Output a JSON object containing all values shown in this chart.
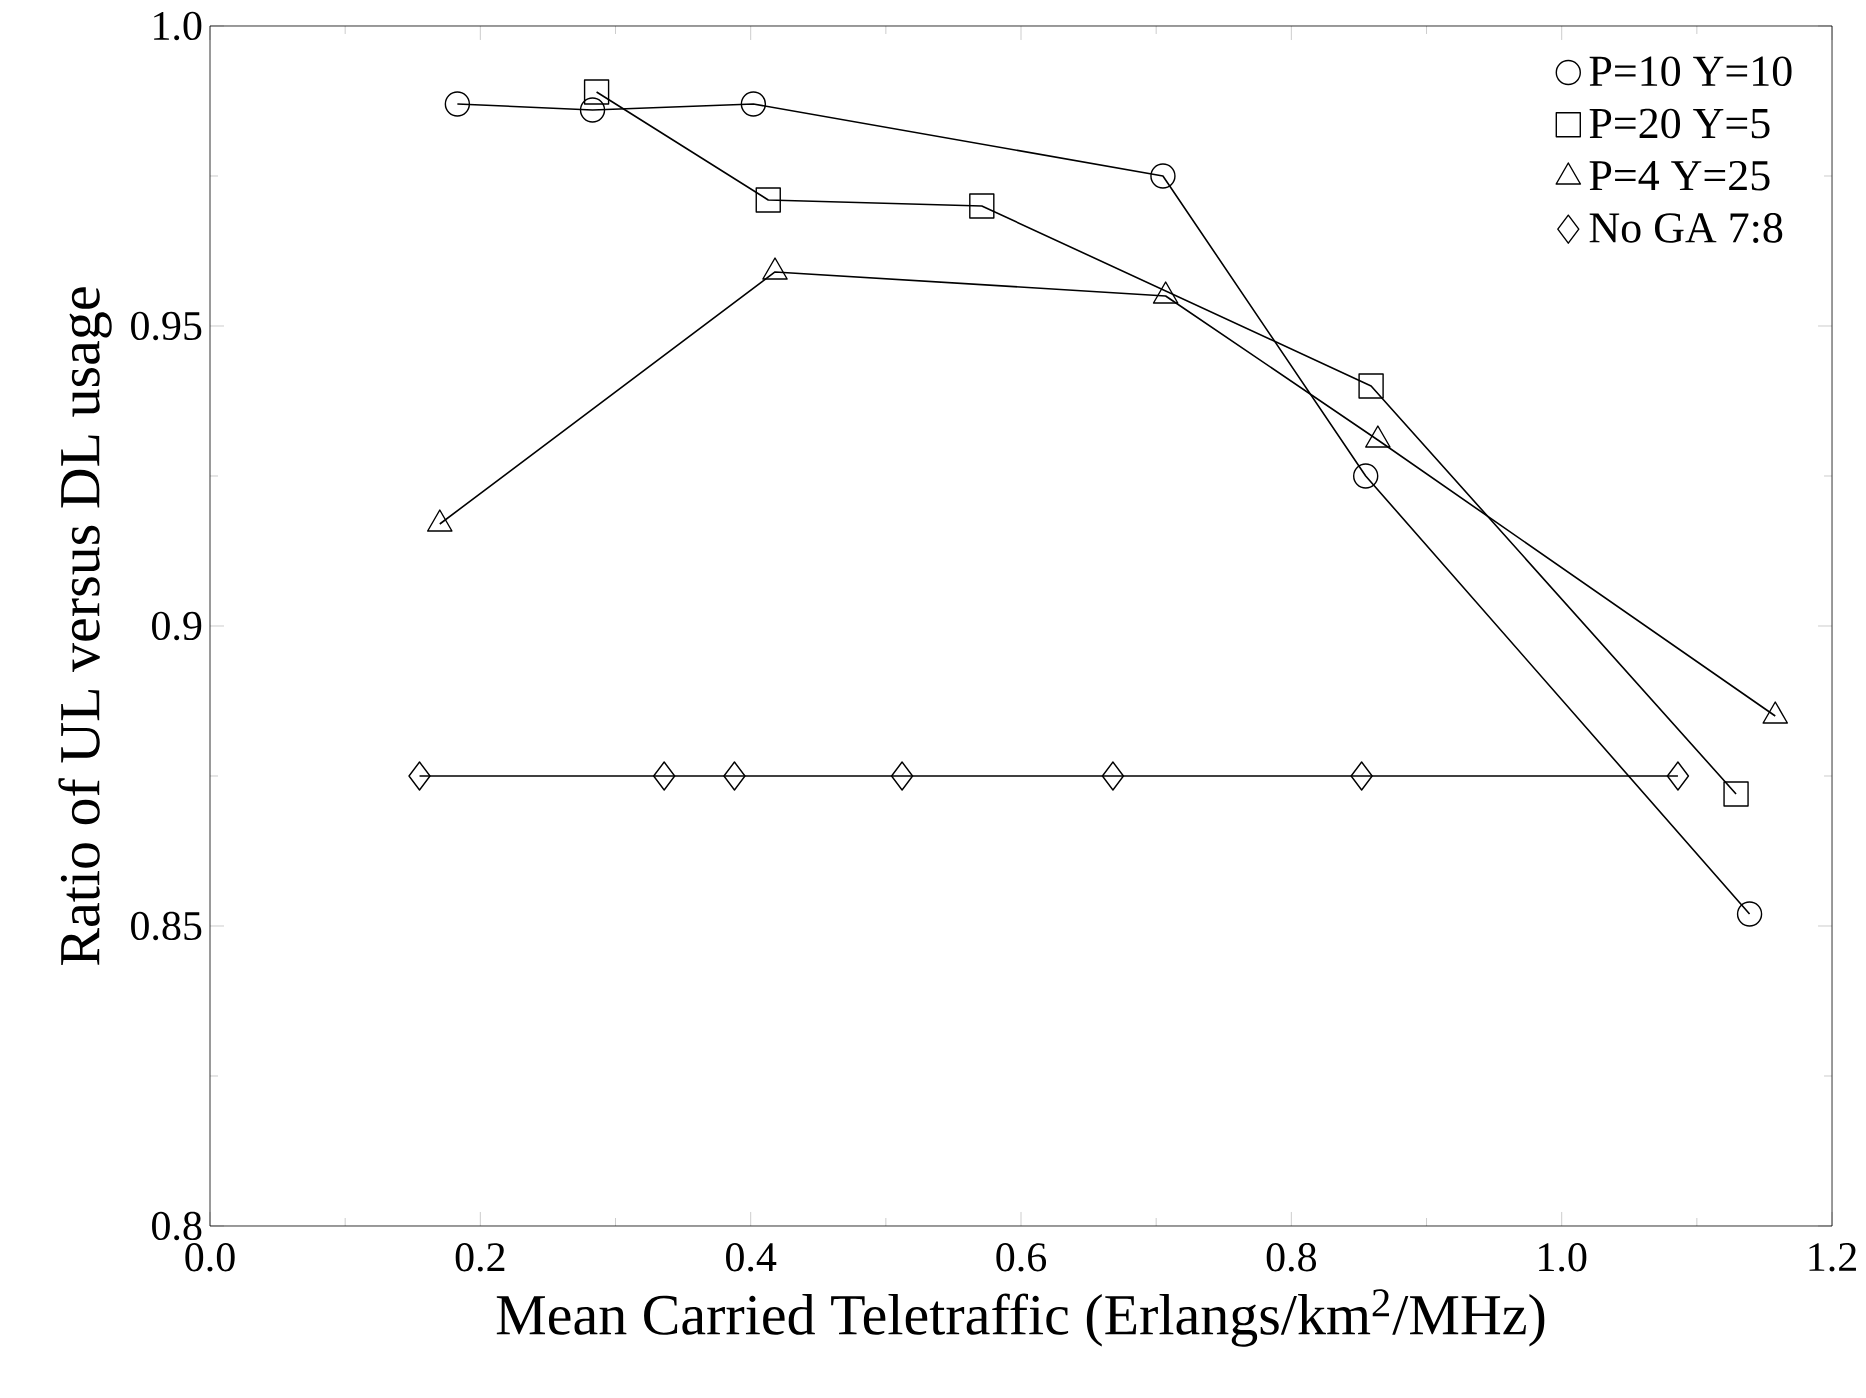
{
  "chart_data": {
    "type": "line",
    "xlabel": "Mean Carried Teletraffic (Erlangs/km$^{2}$/MHz)",
    "ylabel": "Ratio of UL versus DL usage",
    "xlim": [
      0,
      1.2
    ],
    "ylim": [
      0.8,
      1.0
    ],
    "xticks": [
      {
        "value": 0,
        "label": "0.0"
      },
      0.2,
      0.4,
      0.6,
      0.8,
      {
        "value": 1.0,
        "label": "1.0"
      },
      1.2
    ],
    "yticks": [
      0.8,
      0.85,
      0.9,
      0.95,
      {
        "value": 1.0,
        "label": "1.0"
      }
    ],
    "legend": "top right",
    "grid": false,
    "line_style": "solid",
    "series": [
      {
        "name": "P=10 Y=10",
        "color": "#000000",
        "marker": "circle",
        "x": [
          0.183,
          0.283,
          0.402,
          0.705,
          0.855,
          1.139
        ],
        "values": [
          0.987,
          0.986,
          0.987,
          0.975,
          0.925,
          0.852
        ]
      },
      {
        "name": "P=20 Y=5",
        "color": "#000000",
        "marker": "square",
        "x": [
          0.286,
          0.413,
          0.571,
          0.859,
          1.129
        ],
        "values": [
          0.989,
          0.971,
          0.97,
          0.94,
          0.872
        ]
      },
      {
        "name": "P=4 Y=25",
        "color": "#000000",
        "marker": "triangle",
        "x": [
          0.17,
          0.418,
          0.707,
          0.864,
          1.158
        ],
        "values": [
          0.917,
          0.959,
          0.955,
          0.931,
          0.885
        ]
      },
      {
        "name": "No GA 7:8",
        "color": "#000000",
        "marker": "diamond",
        "x": [
          0.155,
          0.336,
          0.388,
          0.512,
          0.668,
          0.852,
          1.086
        ],
        "values": [
          0.875,
          0.875,
          0.875,
          0.875,
          0.875,
          0.875,
          0.875
        ]
      }
    ]
  }
}
